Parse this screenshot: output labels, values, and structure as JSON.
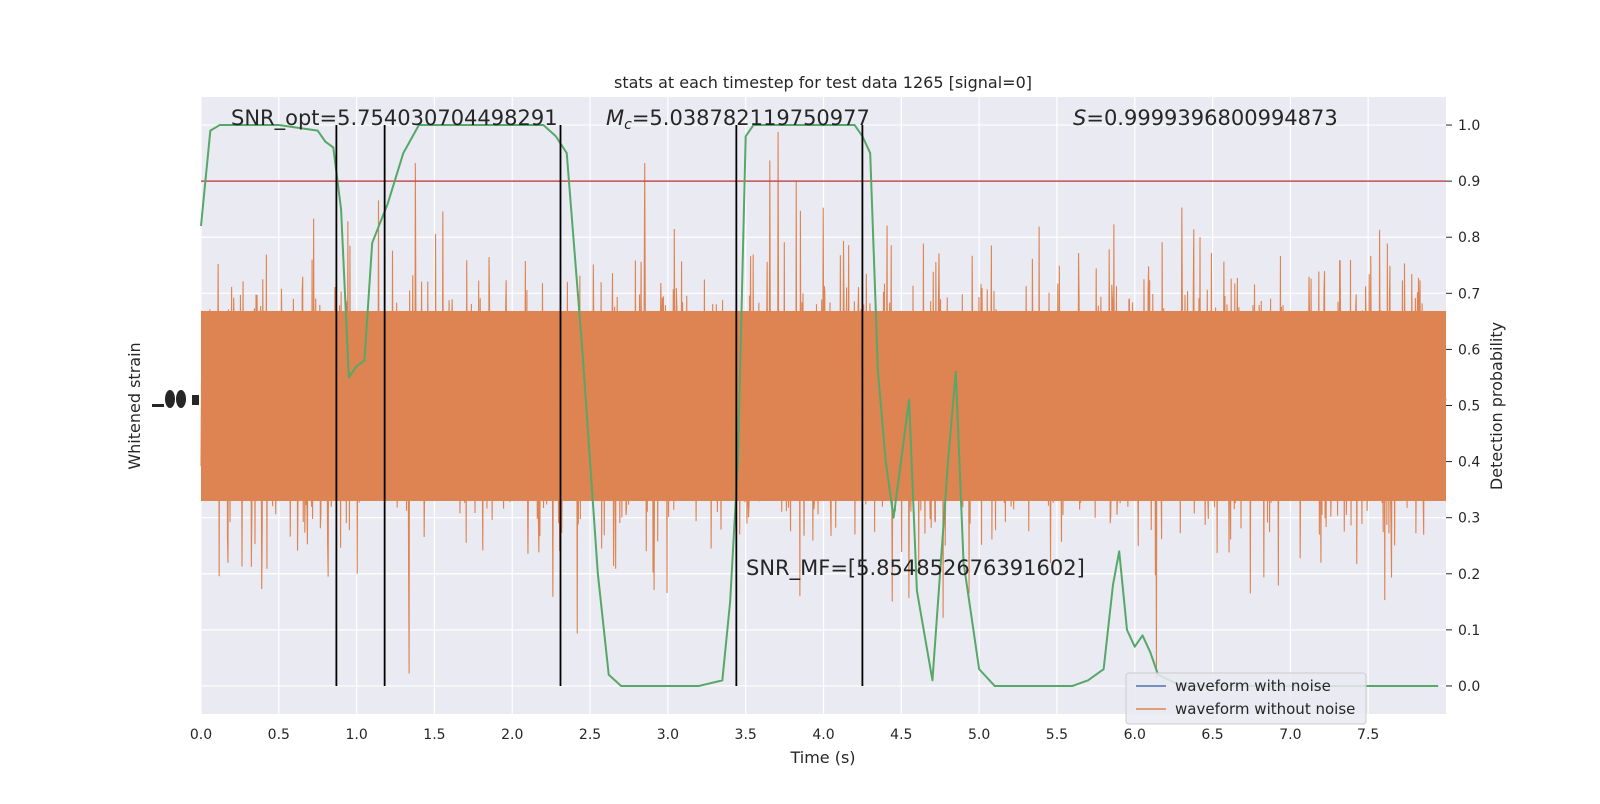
{
  "chart_data": {
    "type": "line",
    "title": "stats at each timestep for test data 1265 [signal=0]",
    "xlabel": "Time (s)",
    "ylabel_left": "Whitened strain",
    "ylabel_right": "Detection probability",
    "xlim": [
      0,
      8
    ],
    "ylim_right": [
      -0.05,
      1.05
    ],
    "x_ticks": [
      "0.0",
      "0.5",
      "1.0",
      "1.5",
      "2.0",
      "2.5",
      "3.0",
      "3.5",
      "4.0",
      "4.5",
      "5.0",
      "5.5",
      "6.0",
      "6.5",
      "7.0",
      "7.5"
    ],
    "y_ticks_right": [
      "0.0",
      "0.1",
      "0.2",
      "0.3",
      "0.4",
      "0.5",
      "0.6",
      "0.7",
      "0.8",
      "0.9",
      "1.0"
    ],
    "grid": true,
    "legend_position": "bottom-right",
    "annotations": {
      "snr_opt": "SNR_opt=5.754030704498291",
      "mc_symbol": "M",
      "mc_subscript": "c",
      "mc_value": "=5.038782119750977",
      "s_symbol": "S",
      "s_value": "=0.9999396800994873",
      "snr_mf": "SNR_MF=[5.854852676391602]"
    },
    "threshold": 0.9,
    "vertical_lines": [
      0.87,
      1.18,
      2.31,
      3.44,
      4.25
    ],
    "series": [
      {
        "name": "waveform with noise",
        "color": "#4c72b0",
        "type": "strain"
      },
      {
        "name": "waveform without noise",
        "color": "#dd8452",
        "type": "strain"
      },
      {
        "color": "#55a868",
        "type": "probability",
        "x": [
          0.0,
          0.06,
          0.12,
          0.25,
          0.5,
          0.75,
          0.8,
          0.85,
          0.9,
          0.95,
          1.0,
          1.05,
          1.1,
          1.2,
          1.3,
          1.4,
          1.5,
          1.8,
          2.0,
          2.2,
          2.28,
          2.35,
          2.45,
          2.55,
          2.62,
          2.7,
          3.0,
          3.2,
          3.35,
          3.4,
          3.45,
          3.5,
          3.55,
          3.6,
          3.8,
          4.0,
          4.2,
          4.25,
          4.3,
          4.35,
          4.4,
          4.45,
          4.55,
          4.6,
          4.7,
          4.8,
          4.85,
          4.9,
          5.0,
          5.1,
          5.3,
          5.6,
          5.7,
          5.8,
          5.86,
          5.9,
          5.95,
          6.0,
          6.05,
          6.1,
          6.15,
          6.3,
          6.6,
          7.0,
          7.5,
          7.95
        ],
        "y": [
          0.82,
          0.99,
          1.0,
          1.0,
          1.0,
          0.99,
          0.97,
          0.96,
          0.85,
          0.55,
          0.57,
          0.58,
          0.79,
          0.86,
          0.95,
          1.0,
          1.0,
          1.0,
          1.0,
          1.0,
          0.98,
          0.95,
          0.6,
          0.2,
          0.02,
          0.0,
          0.0,
          0.0,
          0.01,
          0.15,
          0.4,
          0.98,
          1.0,
          1.0,
          1.0,
          1.0,
          1.0,
          0.98,
          0.95,
          0.56,
          0.4,
          0.3,
          0.51,
          0.17,
          0.01,
          0.4,
          0.56,
          0.22,
          0.03,
          0.0,
          0.0,
          0.0,
          0.01,
          0.03,
          0.18,
          0.24,
          0.1,
          0.07,
          0.09,
          0.06,
          0.02,
          0.0,
          0.0,
          0.0,
          0.0,
          0.0
        ]
      }
    ]
  }
}
